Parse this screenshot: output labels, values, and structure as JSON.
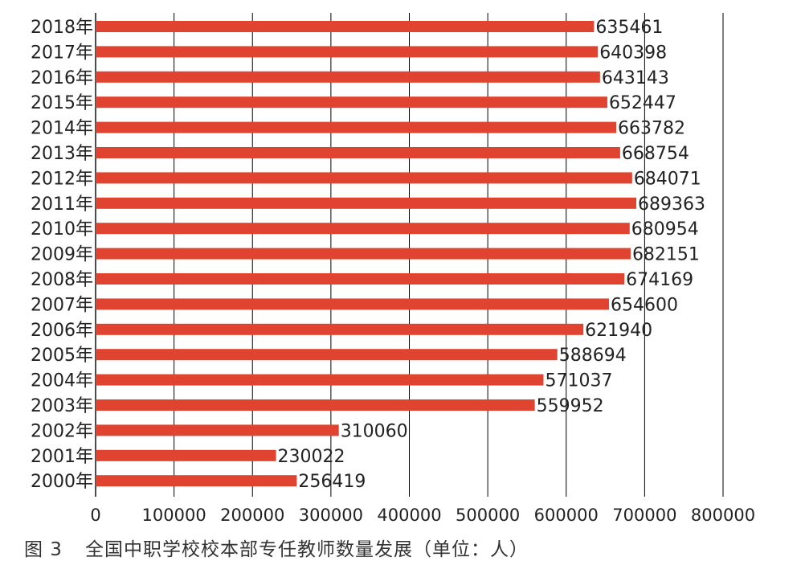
{
  "caption": {
    "figure_label": "图 3",
    "text": "全国中职学校校本部专任教师数量发展（单位：人）"
  },
  "colors": {
    "bar": "#e0432f",
    "grid": "#000000",
    "text": "#222222"
  },
  "chart_data": {
    "type": "bar",
    "orientation": "horizontal",
    "categories": [
      "2018年",
      "2017年",
      "2016年",
      "2015年",
      "2014年",
      "2013年",
      "2012年",
      "2011年",
      "2010年",
      "2009年",
      "2008年",
      "2007年",
      "2006年",
      "2005年",
      "2004年",
      "2003年",
      "2002年",
      "2001年",
      "2000年"
    ],
    "values": [
      635461,
      640398,
      643143,
      652447,
      663782,
      668754,
      684071,
      689363,
      680954,
      682151,
      674169,
      654600,
      621940,
      588694,
      571037,
      559952,
      310060,
      230022,
      256419
    ],
    "value_labels": [
      "635461",
      "640398",
      "643143",
      "652447",
      "663782",
      "668754",
      "684071",
      "689363",
      "680954",
      "682151",
      "674169",
      "654600",
      "621940",
      "588694",
      "571037",
      "559952",
      "310060",
      "230022",
      "256419"
    ],
    "xlim": [
      0,
      800000
    ],
    "xticks": [
      0,
      100000,
      200000,
      300000,
      400000,
      500000,
      600000,
      700000,
      800000
    ],
    "xtick_labels": [
      "0",
      "100000",
      "200000",
      "300000",
      "400000",
      "500000",
      "600000",
      "700000",
      "800000"
    ],
    "grid": "vertical",
    "legend": "none"
  }
}
